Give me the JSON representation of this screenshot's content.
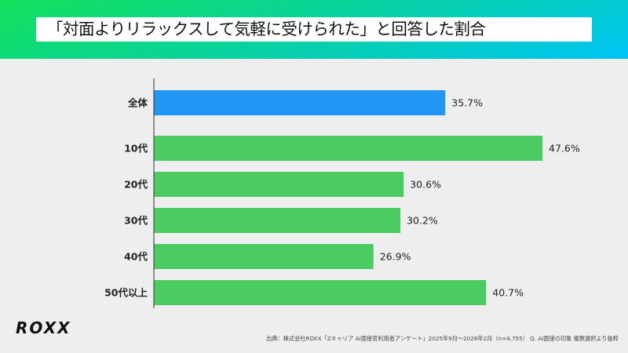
{
  "title": "「対面よりリラックスして気軽に受けられた」と回答した割合",
  "logo_text": "ROXX",
  "source": "出典：株式会社ROXX「Zキャリア AI面接官利用者アンケート」2025年9月〜2026年2月（n=4,755） Q. AI面接の印象 複数選択より抜粋",
  "colors": {
    "overall": "#2196f3",
    "age": "#4ccb63",
    "header_start": "#14e05c",
    "header_end": "#00c4f5"
  },
  "chart_data": {
    "type": "bar",
    "orientation": "horizontal",
    "categories": [
      "全体",
      "10代",
      "20代",
      "30代",
      "40代",
      "50代以上"
    ],
    "values": [
      35.7,
      47.6,
      30.6,
      30.2,
      26.9,
      40.7
    ],
    "value_labels": [
      "35.7%",
      "47.6%",
      "30.6%",
      "30.2%",
      "26.9%",
      "40.7%"
    ],
    "unit": "%",
    "grid": false,
    "legend": "none"
  }
}
